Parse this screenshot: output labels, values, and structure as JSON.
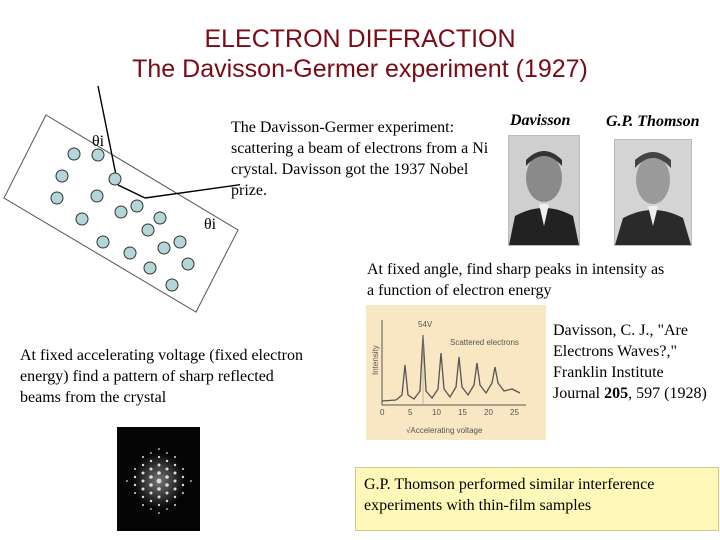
{
  "header": {
    "title_line1": "ELECTRON DIFFRACTION",
    "title_line2": "The Davisson-Germer experiment (1927)"
  },
  "diagram": {
    "theta_label_1": "θi",
    "theta_label_2": "θi"
  },
  "descriptions": {
    "dg_text": "The Davisson-Germer experiment: scattering a beam of electrons from a Ni crystal. Davisson got the 1937 Nobel prize.",
    "fixed_angle_text": "At fixed angle, find sharp peaks in intensity as a function of electron energy",
    "fixed_voltage_text": "At fixed accelerating voltage (fixed electron energy) find a pattern of sharp reflected beams from the crystal"
  },
  "portraits": {
    "left_label": "Davisson",
    "right_label": "G.P. Thomson"
  },
  "graph": {
    "annotation": "54V",
    "legend": "Scattered electrons",
    "ylabel": "Intensity",
    "xlabel": "√Accelerating voltage",
    "ticks": [
      "0",
      "5",
      "10",
      "15",
      "20",
      "25"
    ]
  },
  "reference": {
    "authors": "Davisson, C. J.,",
    "title": "\"Are Electrons Waves?,\" Franklin Institute Journal",
    "volume": "205",
    "pages": ", 597 (1928)"
  },
  "thomson_box": {
    "text": "G.P. Thomson performed similar interference experiments with thin-film samples"
  },
  "colors": {
    "title": "#7a0a14",
    "atom": "#b5d6d8",
    "graph_bg": "#f9e7c4",
    "box_bg": "#fff8b8"
  }
}
